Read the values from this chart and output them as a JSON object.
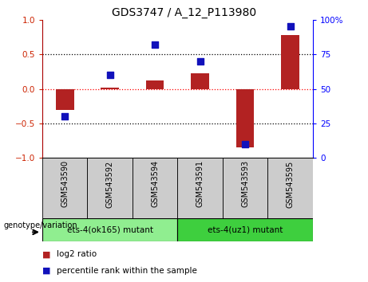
{
  "title": "GDS3747 / A_12_P113980",
  "samples": [
    "GSM543590",
    "GSM543592",
    "GSM543594",
    "GSM543591",
    "GSM543593",
    "GSM543595"
  ],
  "log2_ratio": [
    -0.3,
    0.02,
    0.12,
    0.22,
    -0.85,
    0.78
  ],
  "percentile": [
    30,
    60,
    82,
    70,
    10,
    95
  ],
  "bar_color": "#B22222",
  "dot_color": "#1111BB",
  "group1_label": "ets-4(ok165) mutant",
  "group2_label": "ets-4(uz1) mutant",
  "group1_color": "#90EE90",
  "group2_color": "#3ECF3E",
  "sample_bg_color": "#CCCCCC",
  "genotype_label": "genotype/variation",
  "ylim_left": [
    -1,
    1
  ],
  "ylim_right": [
    0,
    100
  ],
  "yticks_left": [
    -1,
    -0.5,
    0,
    0.5,
    1
  ],
  "yticks_right": [
    0,
    25,
    50,
    75,
    100
  ],
  "hline_dotted": [
    -0.5,
    0.5
  ],
  "hline_red": 0,
  "legend_log2": "log2 ratio",
  "legend_percentile": "percentile rank within the sample"
}
